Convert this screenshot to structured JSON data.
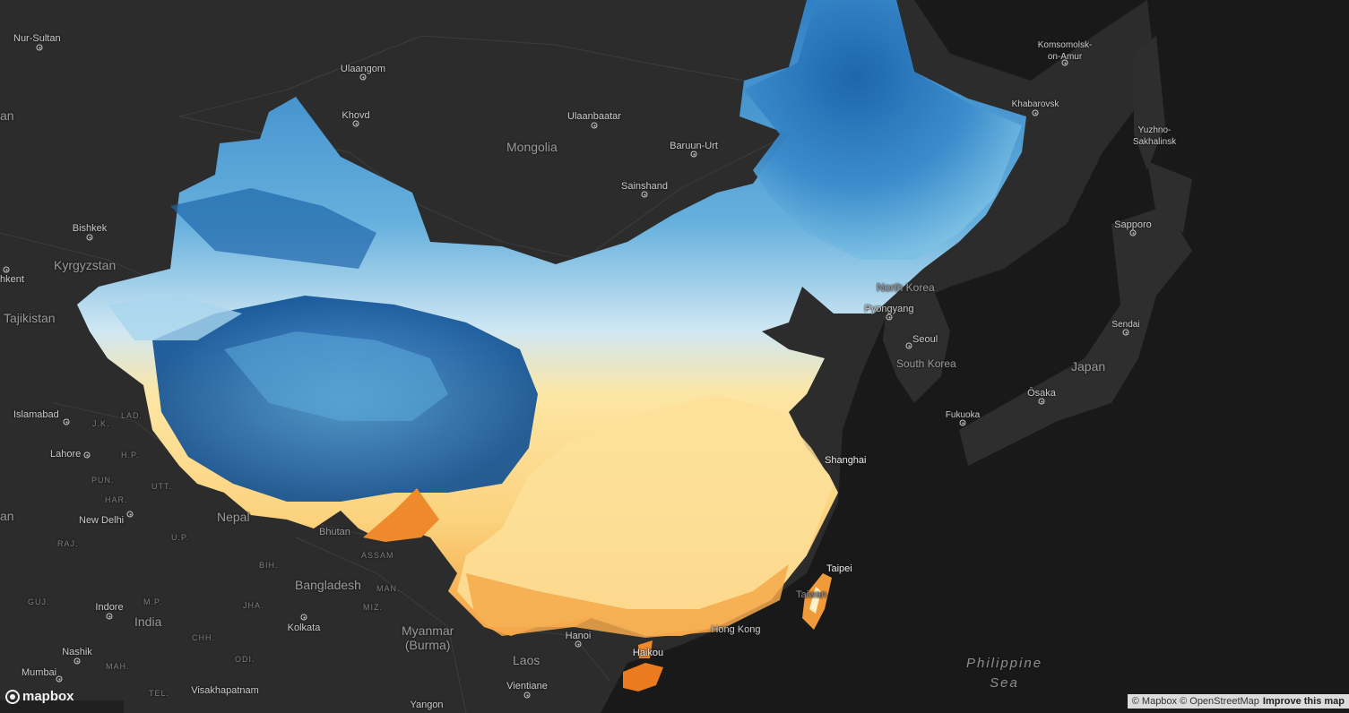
{
  "colors": {
    "background": "#2b2b2b",
    "ocean": "#191919",
    "land": "#2c2c2c",
    "cold_dark": "#08509a",
    "cold": "#4a9fd3",
    "cool": "#8cc6e6",
    "mild": "#cfe7f3",
    "warm": "#fde6a4",
    "hot": "#f7b350",
    "hottest": "#ec7a1e"
  },
  "countries": [
    {
      "id": "mongolia",
      "label": "Mongolia"
    },
    {
      "id": "kyrgyzstan",
      "label": "Kyrgyzstan"
    },
    {
      "id": "tajikistan",
      "label": "Tajikistan"
    },
    {
      "id": "north-korea",
      "label": "North Korea"
    },
    {
      "id": "south-korea",
      "label": "South Korea"
    },
    {
      "id": "japan",
      "label": "Japan"
    },
    {
      "id": "nepal",
      "label": "Nepal"
    },
    {
      "id": "bangladesh",
      "label": "Bangladesh"
    },
    {
      "id": "india",
      "label": "India"
    },
    {
      "id": "myanmar",
      "label": "Myanmar\n(Burma)"
    },
    {
      "id": "laos",
      "label": "Laos"
    },
    {
      "id": "bhutan",
      "label": "Bhutan"
    },
    {
      "id": "taiwan",
      "label": "Taiwan"
    }
  ],
  "cities": [
    {
      "id": "nur-sultan",
      "label": "Nur-Sultan"
    },
    {
      "id": "ulaangom",
      "label": "Ulaangom"
    },
    {
      "id": "khovd",
      "label": "Khovd"
    },
    {
      "id": "ulaanbaatar",
      "label": "Ulaanbaatar"
    },
    {
      "id": "baruun-urt",
      "label": "Baruun-Urt"
    },
    {
      "id": "sainshand",
      "label": "Sainshand"
    },
    {
      "id": "komsomolsk",
      "label": "Komsomolsk-\non-Amur"
    },
    {
      "id": "khabarovsk",
      "label": "Khabarovsk"
    },
    {
      "id": "yuzhno",
      "label": "Yuzhno-\nSakhalinsk"
    },
    {
      "id": "sapporo",
      "label": "Sapporo"
    },
    {
      "id": "sendai",
      "label": "Sendai"
    },
    {
      "id": "pyongyang",
      "label": "Pyongyang"
    },
    {
      "id": "seoul",
      "label": "Seoul"
    },
    {
      "id": "osaka",
      "label": "Ōsaka"
    },
    {
      "id": "fukuoka",
      "label": "Fukuoka"
    },
    {
      "id": "bishkek",
      "label": "Bishkek"
    },
    {
      "id": "tashkent",
      "label": "hkent"
    },
    {
      "id": "islamabad",
      "label": "Islamabad"
    },
    {
      "id": "lahore",
      "label": "Lahore"
    },
    {
      "id": "new-delhi",
      "label": "New Delhi"
    },
    {
      "id": "indore",
      "label": "Indore"
    },
    {
      "id": "nashik",
      "label": "Nashik"
    },
    {
      "id": "mumbai",
      "label": "Mumbai"
    },
    {
      "id": "visakhapatnam",
      "label": "Visakhapatnam"
    },
    {
      "id": "kolkata",
      "label": "Kolkata"
    },
    {
      "id": "hanoi",
      "label": "Hanoi"
    },
    {
      "id": "vientiane",
      "label": "Vientiane"
    },
    {
      "id": "yangon",
      "label": "Yangon"
    },
    {
      "id": "haikou",
      "label": "Haikou"
    },
    {
      "id": "hong-kong",
      "label": "Hong Kong"
    },
    {
      "id": "shanghai",
      "label": "Shanghai"
    },
    {
      "id": "taipei",
      "label": "Taipei"
    },
    {
      "id": "west-edge",
      "label": "an"
    },
    {
      "id": "west-edge-2",
      "label": "an"
    }
  ],
  "states": [
    {
      "id": "jk",
      "label": "J.K."
    },
    {
      "id": "lad",
      "label": "LAD."
    },
    {
      "id": "hp",
      "label": "H.P."
    },
    {
      "id": "pun",
      "label": "PUN."
    },
    {
      "id": "utt",
      "label": "UTT."
    },
    {
      "id": "har",
      "label": "HAR."
    },
    {
      "id": "raj",
      "label": "RAJ."
    },
    {
      "id": "up",
      "label": "U.P."
    },
    {
      "id": "bih",
      "label": "BIH."
    },
    {
      "id": "assam",
      "label": "ASSAM"
    },
    {
      "id": "man",
      "label": "MAN."
    },
    {
      "id": "miz",
      "label": "MIZ."
    },
    {
      "id": "guj",
      "label": "GUJ."
    },
    {
      "id": "mp",
      "label": "M.P."
    },
    {
      "id": "jha",
      "label": "JHA."
    },
    {
      "id": "chh",
      "label": "CHH."
    },
    {
      "id": "odi",
      "label": "ODI."
    },
    {
      "id": "mah",
      "label": "MAH."
    },
    {
      "id": "tel",
      "label": "TEL."
    }
  ],
  "seas": [
    {
      "id": "philippine-sea",
      "label": "Philippine\nSea"
    }
  ],
  "branding": {
    "logo": "mapbox",
    "attribution": "© Mapbox © OpenStreetMap",
    "improve": "Improve this map"
  }
}
